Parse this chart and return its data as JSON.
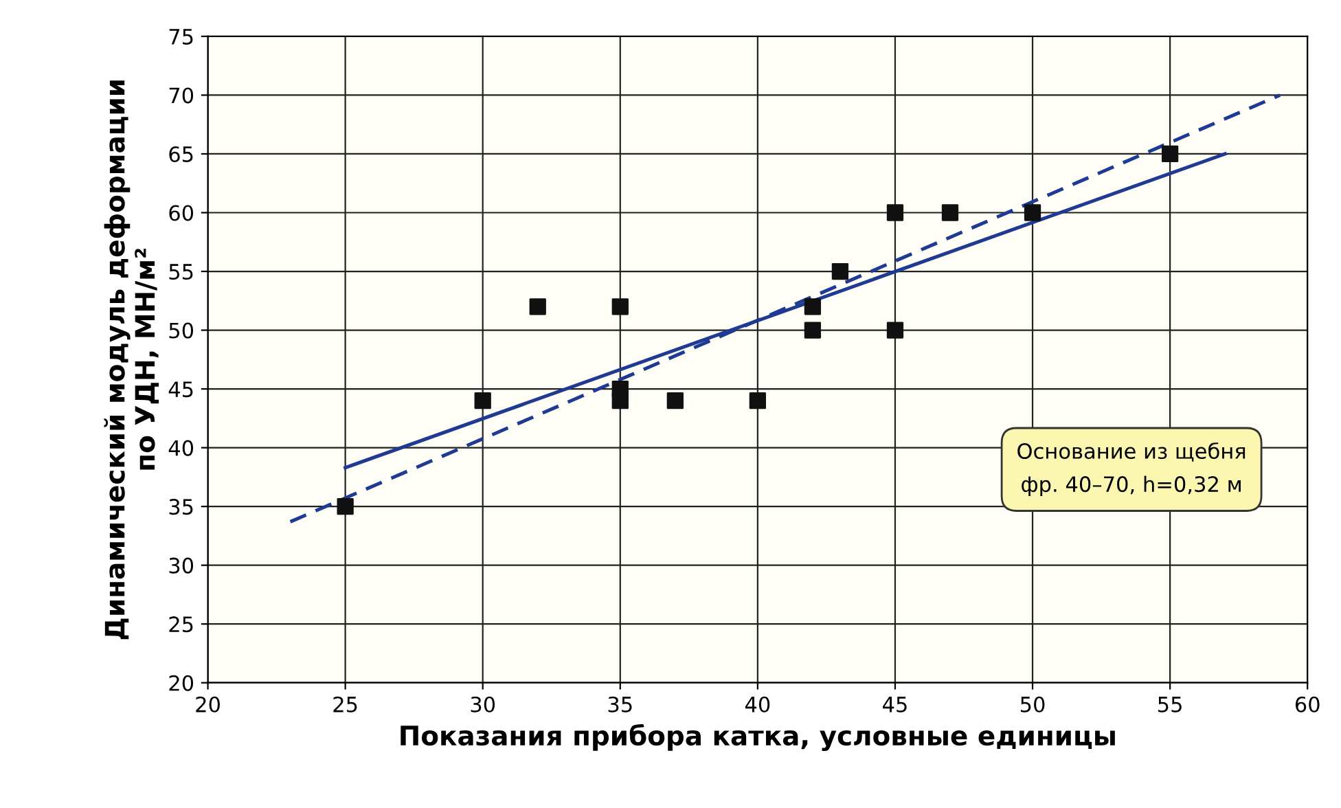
{
  "chart_data": {
    "type": "scatter",
    "xlabel": "Показания прибора катка, условные единицы",
    "ylabel": "Динамический модуль деформации\nпо УДН, МН/м²",
    "series": [
      {
        "color": "#111111",
        "marker": "square",
        "x": [
          25,
          30,
          32,
          35,
          35,
          35,
          37,
          40,
          42,
          42,
          43,
          45,
          45,
          47,
          50,
          55
        ],
        "values": [
          35,
          44,
          52,
          52,
          45,
          44,
          44,
          44,
          52,
          50,
          55,
          60,
          50,
          60,
          60,
          65
        ]
      },
      {
        "type": "line",
        "color": "#1f3a93",
        "line_style": "solid",
        "marker": "none",
        "x": [
          25,
          57
        ],
        "values": [
          38.3,
          65
        ]
      },
      {
        "type": "line",
        "color": "#1f3a93",
        "line_style": "dashed",
        "marker": "none",
        "x": [
          23,
          59
        ],
        "values": [
          33.7,
          70
        ]
      }
    ],
    "annotations": [
      "Основание из щебня\nфр. 40–70, h=0,32 м"
    ],
    "xlim": [
      20,
      60
    ],
    "xticks": [
      20,
      25,
      30,
      35,
      40,
      45,
      50,
      55,
      60
    ],
    "ylim": [
      20,
      75
    ],
    "yticks": [
      20,
      25,
      30,
      35,
      40,
      45,
      50,
      55,
      60,
      65,
      70,
      75
    ],
    "grid": true
  }
}
